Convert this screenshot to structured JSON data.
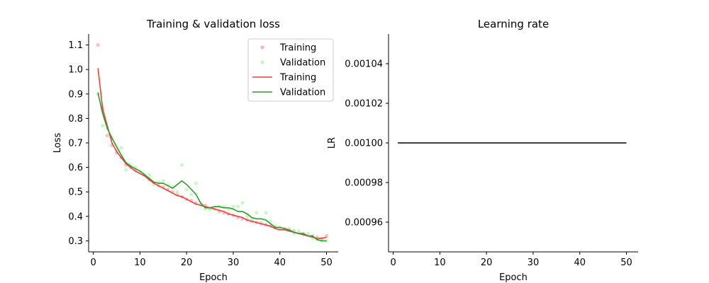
{
  "chart_data": [
    {
      "type": "line",
      "title": "Training & validation loss",
      "xlabel": "Epoch",
      "ylabel": "Loss",
      "xlim": [
        -1,
        52.5
      ],
      "ylim": [
        0.255,
        1.145
      ],
      "xticks": [
        0,
        10,
        20,
        30,
        40,
        50
      ],
      "yticks": [
        0.3,
        0.4,
        0.5,
        0.6,
        0.7,
        0.8,
        0.9,
        1.0,
        1.1
      ],
      "ytick_format": 1,
      "grid": false,
      "legend": {
        "position": "top-right",
        "entries": [
          {
            "label": "Training",
            "kind": "marker",
            "color": "#f4b6bf"
          },
          {
            "label": "Validation",
            "kind": "marker",
            "color": "#c6f5c2"
          },
          {
            "label": "Training",
            "kind": "line",
            "color": "#e8413b"
          },
          {
            "label": "Validation",
            "kind": "line",
            "color": "#2e9a2e"
          }
        ]
      },
      "x": [
        1,
        2,
        3,
        4,
        5,
        6,
        7,
        8,
        9,
        10,
        11,
        12,
        13,
        14,
        15,
        16,
        17,
        18,
        19,
        20,
        21,
        22,
        23,
        24,
        25,
        26,
        27,
        28,
        29,
        30,
        31,
        32,
        33,
        34,
        35,
        36,
        37,
        38,
        39,
        40,
        41,
        42,
        43,
        44,
        45,
        46,
        47,
        48,
        49,
        50
      ],
      "series": [
        {
          "kind": "scatter",
          "color": "#f4b6bf",
          "values": [
            1.1,
            0.84,
            0.73,
            0.69,
            0.66,
            0.64,
            0.61,
            0.6,
            0.59,
            0.58,
            0.57,
            0.55,
            0.535,
            0.525,
            0.52,
            0.51,
            0.5,
            0.49,
            0.48,
            0.47,
            0.465,
            0.455,
            0.45,
            0.445,
            0.43,
            0.43,
            0.42,
            0.415,
            0.41,
            0.405,
            0.395,
            0.39,
            0.385,
            0.38,
            0.375,
            0.37,
            0.365,
            0.36,
            0.355,
            0.35,
            0.35,
            0.345,
            0.34,
            0.335,
            0.33,
            0.325,
            0.32,
            0.315,
            0.31,
            0.32
          ]
        },
        {
          "kind": "scatter",
          "color": "#c6f5c2",
          "values": [
            0.9,
            0.77,
            0.76,
            0.72,
            0.67,
            0.68,
            0.59,
            0.61,
            0.6,
            0.58,
            0.57,
            0.57,
            0.53,
            0.54,
            0.545,
            0.53,
            0.52,
            0.5,
            0.61,
            0.51,
            0.49,
            0.535,
            0.45,
            0.43,
            0.43,
            0.43,
            0.44,
            0.44,
            0.43,
            0.44,
            0.44,
            0.455,
            0.4,
            0.39,
            0.415,
            0.375,
            0.415,
            0.38,
            0.36,
            0.355,
            0.35,
            0.35,
            0.33,
            0.34,
            0.325,
            0.33,
            0.31,
            0.305,
            0.3,
            0.3
          ]
        },
        {
          "kind": "line",
          "color": "#e8413b",
          "values": [
            1.005,
            0.84,
            0.77,
            0.7,
            0.665,
            0.64,
            0.615,
            0.6,
            0.585,
            0.575,
            0.565,
            0.55,
            0.535,
            0.525,
            0.515,
            0.505,
            0.495,
            0.485,
            0.48,
            0.47,
            0.46,
            0.45,
            0.445,
            0.44,
            0.435,
            0.43,
            0.425,
            0.42,
            0.41,
            0.405,
            0.4,
            0.395,
            0.385,
            0.38,
            0.375,
            0.37,
            0.365,
            0.36,
            0.35,
            0.345,
            0.345,
            0.34,
            0.335,
            0.33,
            0.325,
            0.32,
            0.315,
            0.31,
            0.31,
            0.315
          ]
        },
        {
          "kind": "line",
          "color": "#2e9a2e",
          "values": [
            0.905,
            0.82,
            0.76,
            0.72,
            0.685,
            0.65,
            0.62,
            0.605,
            0.595,
            0.585,
            0.57,
            0.555,
            0.54,
            0.535,
            0.535,
            0.525,
            0.515,
            0.53,
            0.545,
            0.53,
            0.51,
            0.49,
            0.455,
            0.435,
            0.435,
            0.44,
            0.44,
            0.435,
            0.435,
            0.43,
            0.42,
            0.42,
            0.41,
            0.395,
            0.39,
            0.39,
            0.385,
            0.37,
            0.355,
            0.355,
            0.35,
            0.345,
            0.335,
            0.33,
            0.33,
            0.32,
            0.32,
            0.305,
            0.3,
            0.3
          ]
        }
      ]
    },
    {
      "type": "line",
      "title": "Learning rate",
      "xlabel": "Epoch",
      "ylabel": "LR",
      "xlim": [
        -1,
        52.5
      ],
      "ylim": [
        0.000945,
        0.001055
      ],
      "xticks": [
        0,
        10,
        20,
        30,
        40,
        50
      ],
      "yticks": [
        0.00096,
        0.00098,
        0.001,
        0.00102,
        0.00104
      ],
      "ytick_format": 5,
      "grid": false,
      "x": [
        1,
        50
      ],
      "series": [
        {
          "kind": "line",
          "color": "#000000",
          "values": [
            0.001,
            0.001
          ]
        }
      ]
    }
  ]
}
